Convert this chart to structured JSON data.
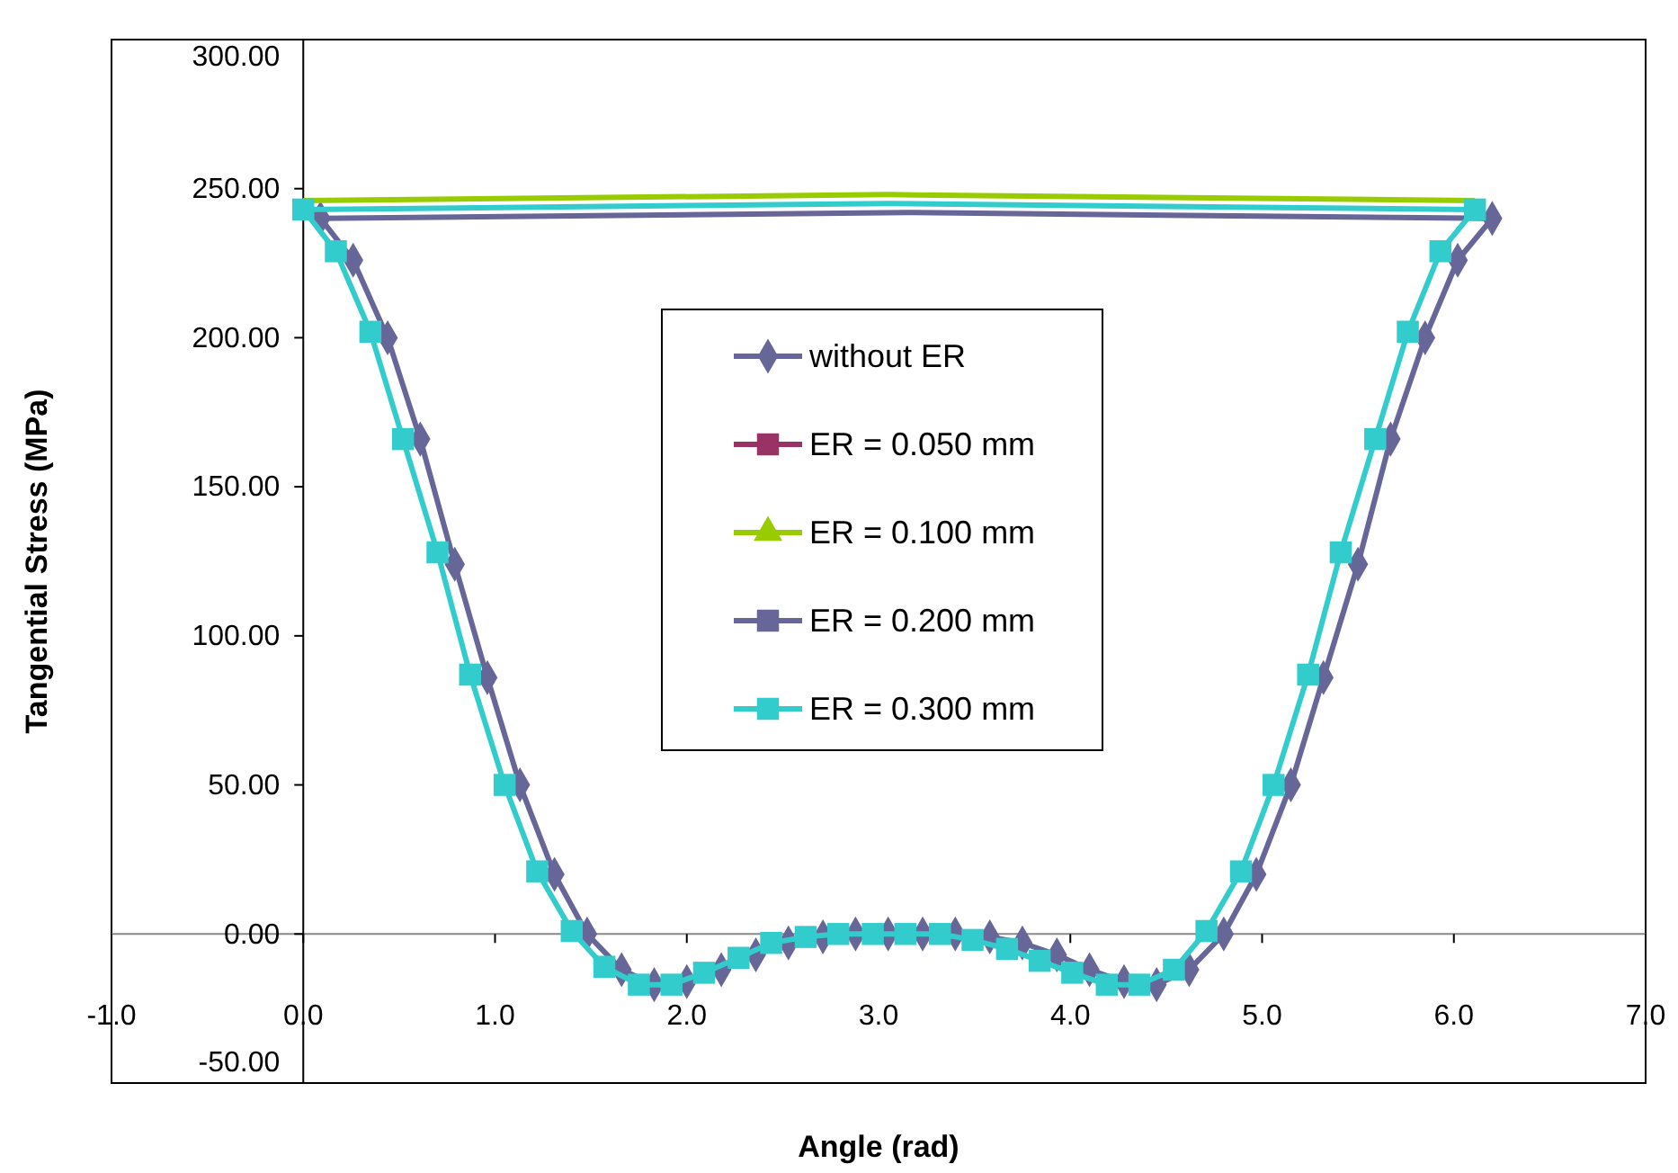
{
  "chart_data": {
    "type": "line",
    "xlabel": "Angle (rad)",
    "ylabel": "Tangential Stress (MPa)",
    "xlim": [
      -1,
      7
    ],
    "ylim": [
      -50,
      300
    ],
    "xticks": [
      {
        "value": -1,
        "label": "-1.0"
      },
      {
        "value": 0,
        "label": "0.0"
      },
      {
        "value": 1,
        "label": "1.0"
      },
      {
        "value": 2,
        "label": "2.0"
      },
      {
        "value": 3,
        "label": "3.0"
      },
      {
        "value": 4,
        "label": "4.0"
      },
      {
        "value": 5,
        "label": "5.0"
      },
      {
        "value": 6,
        "label": "6.0"
      },
      {
        "value": 7,
        "label": "7.0"
      }
    ],
    "yticks": [
      {
        "value": -50,
        "label": "-50.00"
      },
      {
        "value": 0,
        "label": "0.00"
      },
      {
        "value": 50,
        "label": "50.00"
      },
      {
        "value": 100,
        "label": "100.00"
      },
      {
        "value": 150,
        "label": "150.00"
      },
      {
        "value": 200,
        "label": "200.00"
      },
      {
        "value": 250,
        "label": "250.00"
      },
      {
        "value": 300,
        "label": "300.00"
      }
    ],
    "legend": "top",
    "series": [
      {
        "name": "without ER",
        "color": "#666699",
        "marker": "diamond",
        "x": [
          0.09,
          0.26,
          0.44,
          0.61,
          0.79,
          0.96,
          1.13,
          1.31,
          1.48,
          1.66,
          1.83,
          2.0,
          2.18,
          2.36,
          2.53,
          2.71,
          2.88,
          3.05,
          3.23,
          3.4,
          3.58,
          3.75,
          3.93,
          4.1,
          4.28,
          4.45,
          4.62,
          4.8,
          4.97,
          5.15,
          5.32,
          5.5,
          5.67,
          5.85,
          6.02,
          6.2
        ],
        "values": [
          240,
          226,
          200,
          166,
          124,
          86,
          50,
          20,
          0,
          -12,
          -17,
          -16,
          -12,
          -7,
          -3,
          -1,
          0,
          0,
          0,
          0,
          -1,
          -3,
          -7,
          -12,
          -16,
          -17,
          -12,
          0,
          20,
          50,
          86,
          124,
          166,
          200,
          226,
          240
        ]
      },
      {
        "color": "#666699",
        "x": [
          0.09,
          3.15,
          6.2
        ],
        "values": [
          240,
          242,
          240
        ]
      },
      {
        "name": "ER = 0.050 mm",
        "color": "#993366",
        "marker": "square"
      },
      {
        "name": "ER = 0.100 mm",
        "color": "#99cc00",
        "marker": "triangle"
      },
      {
        "color": "#99cc00",
        "x": [
          0,
          3.05,
          6.11
        ],
        "values": [
          246,
          248,
          246
        ]
      },
      {
        "name": "ER = 0.200 mm",
        "color": "#666699",
        "marker": "square"
      },
      {
        "name": "ER = 0.300 mm",
        "color": "#33cccc",
        "marker": "square",
        "x": [
          0,
          0.17,
          0.35,
          0.52,
          0.7,
          0.87,
          1.05,
          1.22,
          1.4,
          1.57,
          1.75,
          1.92,
          2.09,
          2.27,
          2.44,
          2.62,
          2.79,
          2.97,
          3.14,
          3.32,
          3.49,
          3.67,
          3.84,
          4.01,
          4.19,
          4.36,
          4.54,
          4.71,
          4.89,
          5.06,
          5.24,
          5.41,
          5.59,
          5.76,
          5.93,
          6.11
        ],
        "values": [
          243,
          229,
          202,
          166,
          128,
          87,
          50,
          21,
          1,
          -11,
          -17,
          -17,
          -13,
          -8,
          -3,
          -1,
          0,
          0,
          0,
          0,
          -2,
          -5,
          -9,
          -13,
          -17,
          -17,
          -12,
          1,
          21,
          50,
          87,
          128,
          166,
          202,
          229,
          243
        ]
      },
      {
        "color": "#33cccc",
        "x": [
          0,
          3.05,
          6.11
        ],
        "values": [
          243,
          245,
          243
        ]
      }
    ]
  }
}
